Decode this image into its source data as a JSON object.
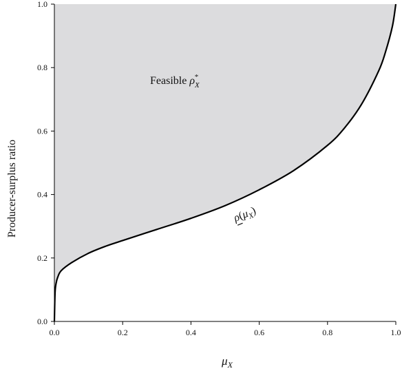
{
  "chart_data": {
    "type": "area",
    "title": "",
    "xlabel": "μ_X",
    "ylabel": "Producer-surplus ratio",
    "xlim": [
      0.0,
      1.0
    ],
    "ylim": [
      0.0,
      1.0
    ],
    "x_ticks": [
      "0.0",
      "0.2",
      "0.4",
      "0.6",
      "0.8",
      "1.0"
    ],
    "y_ticks": [
      "0.0",
      "0.2",
      "0.4",
      "0.6",
      "0.8",
      "1.0"
    ],
    "grid": false,
    "legend": "none",
    "series": [
      {
        "name": "ρ(μ_X)",
        "x": [
          0.0,
          0.002,
          0.005,
          0.01,
          0.02,
          0.05,
          0.1,
          0.15,
          0.2,
          0.3,
          0.4,
          0.5,
          0.6,
          0.7,
          0.8,
          0.85,
          0.9,
          0.95,
          0.97,
          0.99,
          1.0
        ],
        "y": [
          0.0,
          0.09,
          0.12,
          0.14,
          0.16,
          0.185,
          0.215,
          0.237,
          0.255,
          0.29,
          0.325,
          0.365,
          0.415,
          0.475,
          0.555,
          0.61,
          0.685,
          0.79,
          0.85,
          0.93,
          1.0
        ]
      }
    ],
    "annotations": [
      {
        "text": "Feasible",
        "math": "ρ",
        "sup": "*",
        "sub": "X",
        "x": 0.3,
        "y": 0.76
      },
      {
        "text": "ρ(μ",
        "sub": "X",
        "close": ")",
        "x": 0.58,
        "y": 0.34
      }
    ],
    "colors": {
      "fill": "#dcdcde",
      "line": "#000000"
    }
  }
}
